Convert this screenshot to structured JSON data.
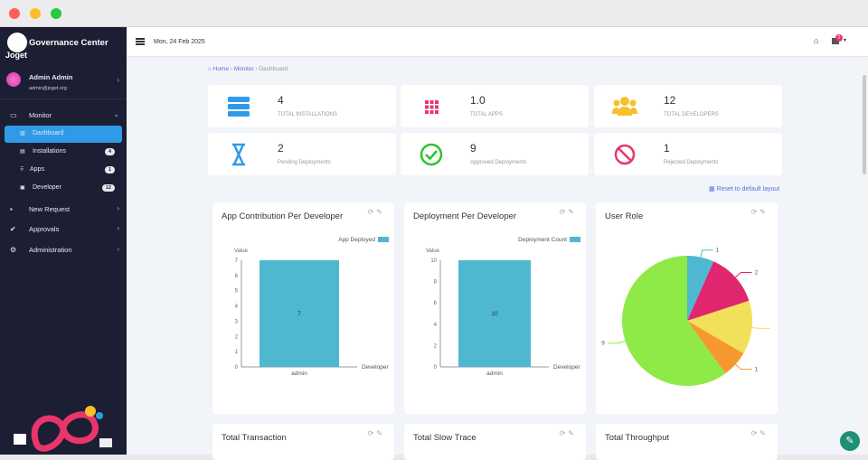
{
  "app": {
    "brand": "Governance Center",
    "logo_text": "Joget"
  },
  "user": {
    "name": "Admin Admin",
    "email": "admin@joget.org"
  },
  "sidebar": {
    "monitor": "Monitor",
    "sub": [
      {
        "label": "Dashboard",
        "icon": "chart-icon"
      },
      {
        "label": "Installations",
        "count": "4",
        "icon": "server-icon"
      },
      {
        "label": "Apps",
        "count": "1",
        "icon": "grid-icon"
      },
      {
        "label": "Developer",
        "count": "12",
        "icon": "id-card-icon"
      }
    ],
    "items": [
      {
        "label": "New Request",
        "icon": "file-plus-icon"
      },
      {
        "label": "Approvals",
        "icon": "clipboard-check-icon"
      },
      {
        "label": "Administration",
        "icon": "gears-icon"
      }
    ]
  },
  "topbar": {
    "date": "Mon, 24 Feb 2025",
    "notif_count": "2"
  },
  "breadcrumb": {
    "home": "Home",
    "monitor": "Monitor",
    "current": "Dashboard"
  },
  "stats": [
    {
      "value": "4",
      "label": "TOTAL INSTALLATIONS",
      "color": "#2f9be8"
    },
    {
      "value": "1.0",
      "label": "TOTAL APPS",
      "color": "#e8366a"
    },
    {
      "value": "12",
      "label": "TOTAL DEVELOPERS",
      "color": "#f7bf2a"
    },
    {
      "value": "2",
      "label": "Pending Deployments",
      "color": "#2f9be8"
    },
    {
      "value": "9",
      "label": "Approved Deployments",
      "color": "#2ec42e"
    },
    {
      "value": "1",
      "label": "Rejected Deployments",
      "color": "#e8366a"
    }
  ],
  "reset_label": "Reset to default layout",
  "chart_data": [
    {
      "type": "bar",
      "title": "App Contribution Per Developer",
      "legend": "App Deployed",
      "categories": [
        "admin"
      ],
      "values": [
        7
      ],
      "xlabel": "Developer",
      "ylabel": "Value",
      "ylim": [
        0,
        7
      ],
      "yticks": [
        0,
        1,
        2,
        3,
        4,
        5,
        6,
        7
      ],
      "color": "#4fb8d1"
    },
    {
      "type": "bar",
      "title": "Deployment Per Developer",
      "legend": "Deployment Count",
      "categories": [
        "admin"
      ],
      "values": [
        10
      ],
      "xlabel": "Developer",
      "ylabel": "Value",
      "ylim": [
        0,
        10
      ],
      "yticks": [
        0,
        2,
        4,
        6,
        8,
        10
      ],
      "color": "#4fb8d1"
    },
    {
      "type": "pie",
      "title": "User Role",
      "values": [
        1,
        2,
        2,
        1,
        9
      ],
      "labels": [
        "1",
        "2",
        "",
        "1",
        "9"
      ],
      "colors": [
        "#4fb8d1",
        "#e0266e",
        "#f2e05a",
        "#f7982e",
        "#8fea48"
      ]
    }
  ],
  "bottom_cards": [
    "Total Transaction",
    "Total Slow Trace",
    "Total Throughput"
  ]
}
